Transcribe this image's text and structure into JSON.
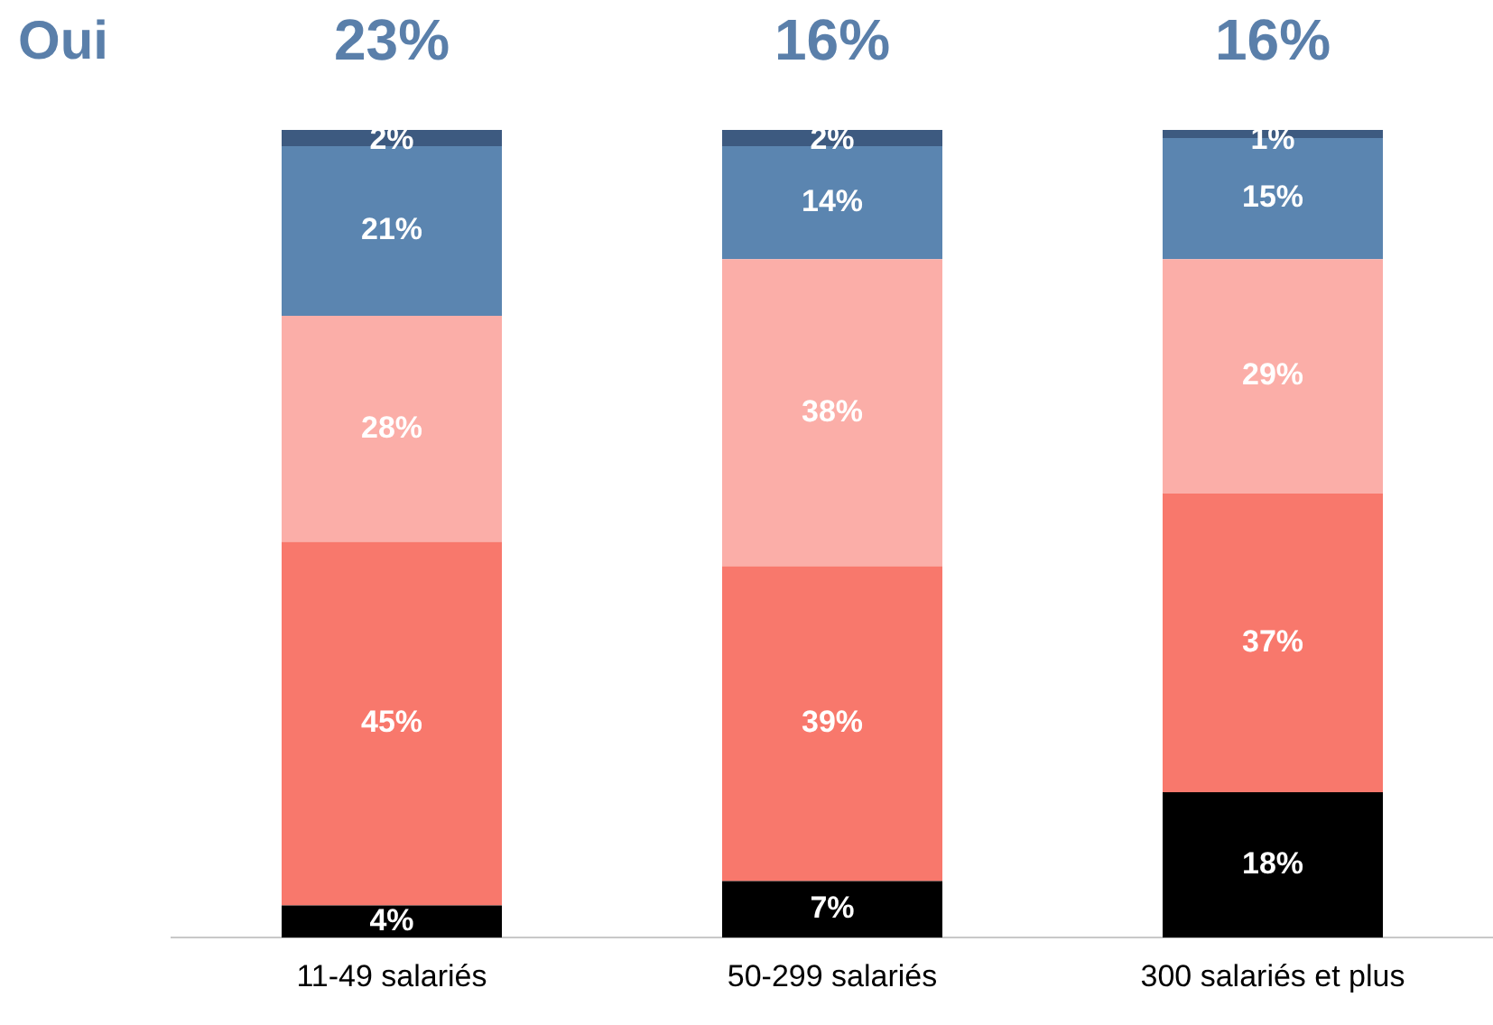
{
  "chart_data": {
    "type": "bar",
    "stacked": true,
    "title": "Oui",
    "categories": [
      "11-49 salariés",
      "50-299 salariés",
      "300 salariés et plus"
    ],
    "series": [
      {
        "color": "#000000",
        "values": [
          4,
          7,
          18
        ],
        "value_labels": [
          "4%",
          "7%",
          "18%"
        ]
      },
      {
        "color": "#f8786c",
        "values": [
          45,
          39,
          37
        ],
        "value_labels": [
          "45%",
          "39%",
          "37%"
        ]
      },
      {
        "color": "#fbaea8",
        "values": [
          28,
          38,
          29
        ],
        "value_labels": [
          "28%",
          "38%",
          "29%"
        ]
      },
      {
        "color": "#5b85b0",
        "values": [
          21,
          14,
          15
        ],
        "value_labels": [
          "21%",
          "14%",
          "15%"
        ]
      },
      {
        "color": "#3d5a80",
        "values": [
          2,
          2,
          1
        ],
        "value_labels": [
          "2%",
          "2%",
          "1%"
        ]
      }
    ],
    "annotations": [
      "23%",
      "16%",
      "16%"
    ],
    "grid": false,
    "legend": false
  }
}
